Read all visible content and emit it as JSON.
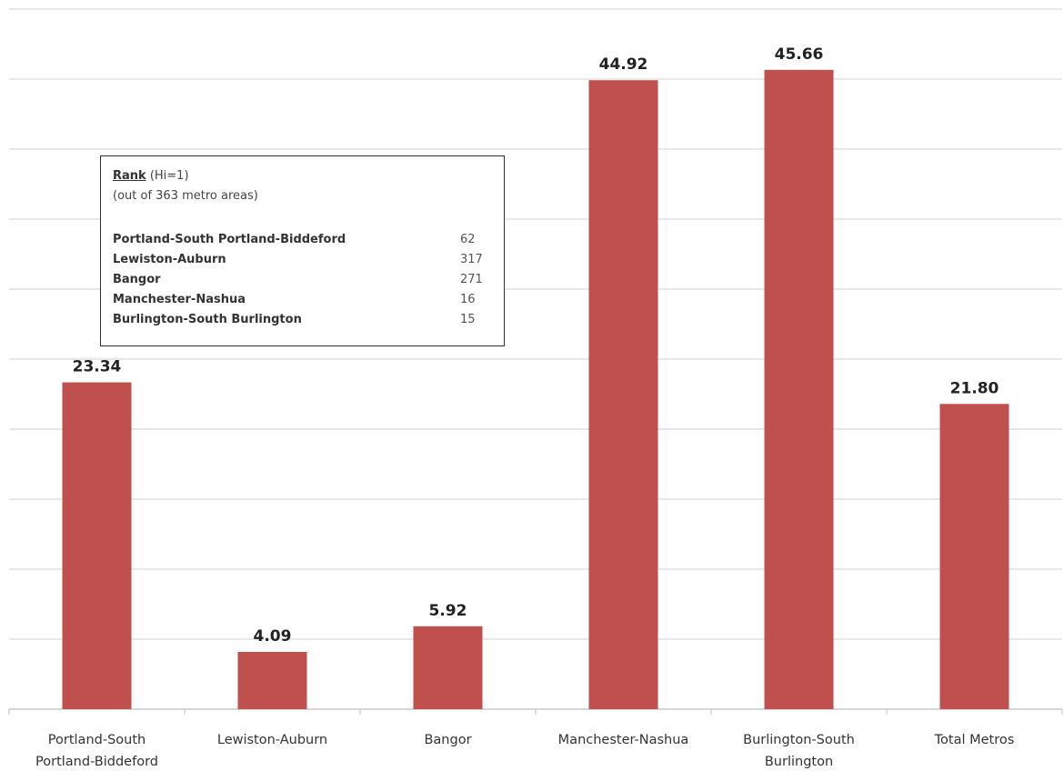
{
  "chart_data": {
    "type": "bar",
    "categories": [
      [
        "Portland-South",
        "Portland-Biddeford"
      ],
      [
        "Lewiston-Auburn"
      ],
      [
        "Bangor"
      ],
      [
        "Manchester-Nashua"
      ],
      [
        "Burlington-South",
        "Burlington"
      ],
      [
        "Total Metros"
      ]
    ],
    "values": [
      23.34,
      4.09,
      5.92,
      44.92,
      45.66,
      21.8
    ],
    "value_labels": [
      "23.34",
      "4.09",
      "5.92",
      "44.92",
      "45.66",
      "21.80"
    ],
    "ylim": [
      0,
      50
    ],
    "gridline_step": 5,
    "grid": true,
    "bar_color": "#c0504d"
  },
  "legend_box": {
    "rank_label": "Rank",
    "rank_suffix": "(Hi=1)",
    "subtitle": "(out of 363 metro areas)",
    "rows": [
      {
        "name": "Portland-South Portland-Biddeford",
        "value": "62"
      },
      {
        "name": "Lewiston-Auburn",
        "value": "317"
      },
      {
        "name": "Bangor",
        "value": "271"
      },
      {
        "name": "Manchester-Nashua",
        "value": "16"
      },
      {
        "name": "Burlington-South Burlington",
        "value": "15"
      }
    ]
  }
}
